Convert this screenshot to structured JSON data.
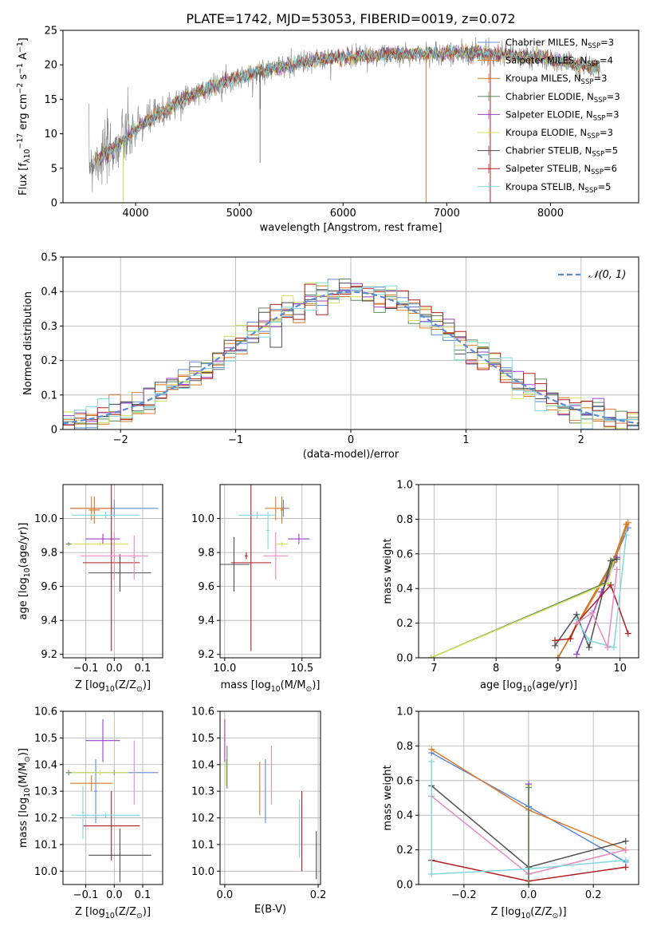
{
  "figure": {
    "title": "PLATE=1742, MJD=53053, FIBERID=0019, z=0.072"
  },
  "colors": {
    "Chabrier MILES": "#5b8bd4",
    "Salpeter MILES": "#e07a2b",
    "Kroupa MILES": "#c9761d",
    "Chabrier ELODIE": "#5c8a5c",
    "Salpeter ELODIE": "#9a3fc9",
    "Kroupa ELODIE": "#d4e05a",
    "Chabrier STELIB": "#4d4d4d",
    "Salpeter STELIB": "#b01e1e",
    "Kroupa STELIB": "#7fd8df",
    "data": "#808080",
    "pink": "#e68ac3",
    "normal": "#5b8bd4"
  },
  "chart_data": [
    {
      "id": "spectrum",
      "type": "line",
      "xlabel": "wavelength [Angstrom, rest frame]",
      "ylabel": "Flux [f",
      "ylabel_parts": [
        "Flux [f",
        "λ",
        "10",
        "−17",
        " erg cm",
        "−2",
        " s",
        "−1",
        " A",
        "−1",
        "]"
      ],
      "xlim": [
        3300,
        8850
      ],
      "ylim": [
        0,
        25
      ],
      "xticks": [
        4000,
        5000,
        6000,
        7000,
        8000
      ],
      "yticks": [
        0,
        5,
        10,
        15,
        20,
        25
      ],
      "continuum_x": [
        3550,
        3650,
        3750,
        3850,
        3950,
        4050,
        4150,
        4300,
        4500,
        4700,
        4900,
        5100,
        5300,
        5500,
        5700,
        5900,
        6100,
        6300,
        6500,
        6700,
        6900,
        7100,
        7300,
        7500,
        7700,
        7900,
        8100,
        8300,
        8500
      ],
      "continuum_y": [
        5.8,
        6.5,
        7.5,
        8.5,
        9.8,
        11.2,
        12.2,
        13.5,
        15.3,
        16.6,
        17.8,
        18.6,
        19.4,
        19.9,
        20.6,
        21.0,
        21.3,
        21.4,
        21.5,
        21.6,
        21.6,
        21.7,
        21.7,
        21.5,
        21.3,
        21.0,
        20.4,
        20.0,
        19.4
      ],
      "legend": [
        {
          "label": "Chabrier MILES",
          "n": "3"
        },
        {
          "label": "Salpeter MILES",
          "n": "4"
        },
        {
          "label": "Kroupa MILES",
          "n": "3"
        },
        {
          "label": "Chabrier ELODIE",
          "n": "3"
        },
        {
          "label": "Salpeter ELODIE",
          "n": "3"
        },
        {
          "label": "Kroupa ELODIE",
          "n": "3"
        },
        {
          "label": "Chabrier STELIB",
          "n": "5"
        },
        {
          "label": "Salpeter STELIB",
          "n": "6"
        },
        {
          "label": "Kroupa STELIB",
          "n": "5"
        }
      ],
      "legend_prefix": "N",
      "legend_sub": "SSP",
      "legend_placement": "top-right",
      "grid": false
    },
    {
      "id": "residuals",
      "type": "histogram",
      "xlabel": "(data-model)/error",
      "ylabel": "Normed distribution",
      "xlim": [
        -2.5,
        2.5
      ],
      "ylim": [
        0,
        0.5
      ],
      "xticks": [
        -2,
        -1,
        0,
        1,
        2
      ],
      "yticks": [
        0.0,
        0.1,
        0.2,
        0.3,
        0.4,
        0.5
      ],
      "bin_width": 0.1,
      "legend": [
        "𝒩(0, 1)"
      ],
      "legend_placement": "top-right",
      "grid": true
    },
    {
      "id": "age-vs-Z",
      "type": "scatter",
      "xlabel": "Z [log",
      "xlabel_parts": [
        "Z [log",
        "10",
        "(Z/Z",
        "⊙",
        ")]"
      ],
      "ylabel": "age  [log",
      "ylabel_parts": [
        "age  [log",
        "10",
        "(age/yr)]"
      ],
      "xlim": [
        -0.18,
        0.17
      ],
      "ylim": [
        9.18,
        10.2
      ],
      "xticks": [
        -0.1,
        0.0,
        0.1
      ],
      "xticklabels": [
        "−0.1",
        "0.0",
        "0.1"
      ],
      "yticks": [
        9.2,
        9.4,
        9.6,
        9.8,
        10.0
      ],
      "yticklabels": [
        "9.2",
        "9.4",
        "9.6",
        "9.8",
        "10.0"
      ],
      "grid": true,
      "points": [
        {
          "series": "Chabrier MILES",
          "x": 0.0,
          "xerr": 0.155,
          "y": 10.06,
          "yerr": 0.05
        },
        {
          "series": "Salpeter MILES",
          "x": -0.08,
          "xerr": 0.075,
          "y": 10.06,
          "yerr": 0.07
        },
        {
          "series": "Kroupa MILES",
          "x": -0.07,
          "xerr": 0.02,
          "y": 10.05,
          "yerr": 0.08
        },
        {
          "series": "Chabrier ELODIE",
          "x": -0.16,
          "xerr": 0.01,
          "y": 9.85,
          "yerr": 0.01
        },
        {
          "series": "Salpeter ELODIE",
          "x": -0.04,
          "xerr": 0.06,
          "y": 9.88,
          "yerr": 0.03
        },
        {
          "series": "Kroupa ELODIE",
          "x": -0.05,
          "xerr": 0.1,
          "y": 9.85,
          "yerr": 0.01
        },
        {
          "series": "Chabrier STELIB",
          "x": 0.02,
          "xerr": 0.11,
          "y": 9.68,
          "yerr": 0.11
        },
        {
          "series": "Salpeter STELIB",
          "x": -0.01,
          "xerr": 0.1,
          "y": 9.74,
          "yerr": 0.52
        },
        {
          "series": "Kroupa STELIB",
          "x": -0.03,
          "xerr": 0.12,
          "y": 10.02,
          "yerr": 0.02
        },
        {
          "series": "pink",
          "x": 0.0,
          "xerr": 0.12,
          "y": 9.78,
          "yerr": 0.14
        },
        {
          "series": "pink",
          "x": 0.07,
          "xerr": 0.005,
          "y": 9.77,
          "yerr": 0.13
        }
      ]
    },
    {
      "id": "age-vs-mass",
      "type": "scatter",
      "xlabel": "mass [log",
      "xlabel_parts": [
        "mass [log",
        "10",
        "(M/M",
        "⊙",
        ")]"
      ],
      "ylabel": "",
      "xlim": [
        9.97,
        10.62
      ],
      "ylim": [
        9.18,
        10.2
      ],
      "xticks": [
        10.0,
        10.5
      ],
      "xticklabels": [
        "10.0",
        "10.5"
      ],
      "yticks": [
        9.2,
        9.4,
        9.6,
        9.8,
        10.0
      ],
      "yticklabels": [
        "9.2",
        "9.4",
        "9.6",
        "9.8",
        "10.0"
      ],
      "grid": true,
      "points": [
        {
          "series": "Chabrier MILES",
          "x": 10.38,
          "xerr": 0.04,
          "y": 10.06,
          "yerr": 0.05
        },
        {
          "series": "Salpeter MILES",
          "x": 10.33,
          "xerr": 0.07,
          "y": 10.06,
          "yerr": 0.07
        },
        {
          "series": "Kroupa MILES",
          "x": 10.37,
          "xerr": 0.01,
          "y": 10.05,
          "yerr": 0.08
        },
        {
          "series": "Chabrier ELODIE",
          "x": 10.37,
          "xerr": 0.01,
          "y": 9.85,
          "yerr": 0.01
        },
        {
          "series": "Salpeter ELODIE",
          "x": 10.48,
          "xerr": 0.07,
          "y": 9.88,
          "yerr": 0.03
        },
        {
          "series": "Kroupa ELODIE",
          "x": 10.37,
          "xerr": 0.04,
          "y": 9.85,
          "yerr": 0.01
        },
        {
          "series": "Chabrier STELIB",
          "x": 10.06,
          "xerr": 0.1,
          "y": 9.73,
          "yerr": 0.16
        },
        {
          "series": "Salpeter STELIB",
          "x": 10.17,
          "xerr": 0.13,
          "y": 9.74,
          "yerr": 0.52
        },
        {
          "series": "Kroupa STELIB",
          "x": 10.21,
          "xerr": 0.12,
          "y": 10.02,
          "yerr": 0.02
        },
        {
          "series": "Kroupa STELIB",
          "x": 10.28,
          "xerr": 0.01,
          "y": 9.93,
          "yerr": 0.11
        },
        {
          "series": "pink",
          "x": 10.33,
          "xerr": 0.08,
          "y": 9.78,
          "yerr": 0.14
        },
        {
          "series": "Salpeter STELIB",
          "x": 10.14,
          "xerr": 0.01,
          "y": 9.78,
          "yerr": 0.02
        }
      ]
    },
    {
      "id": "weight-vs-age",
      "type": "line",
      "xlabel": "age  [log",
      "xlabel_parts": [
        "age  [log",
        "10",
        "(age/yr)]"
      ],
      "ylabel": "mass weight",
      "xlim": [
        6.75,
        10.3
      ],
      "ylim": [
        0,
        1.0
      ],
      "xticks": [
        7,
        8,
        9,
        10
      ],
      "xticklabels": [
        "7",
        "8",
        "9",
        "10"
      ],
      "yticks": [
        0.0,
        0.2,
        0.4,
        0.6,
        0.8,
        1.0
      ],
      "yticklabels": [
        "0.0",
        "0.2",
        "0.4",
        "0.6",
        "0.8",
        "1.0"
      ],
      "grid": true,
      "series": [
        {
          "name": "Chabrier MILES",
          "x": [
            9.0,
            9.9,
            10.13
          ],
          "y": [
            0.0,
            0.56,
            0.75
          ]
        },
        {
          "name": "Salpeter MILES",
          "x": [
            9.0,
            9.9,
            10.13
          ],
          "y": [
            0.0,
            0.55,
            0.78
          ]
        },
        {
          "name": "Kroupa MILES",
          "x": [
            9.0,
            9.9,
            10.1
          ],
          "y": [
            0.0,
            0.57,
            0.77
          ]
        },
        {
          "name": "Chabrier ELODIE",
          "x": [
            6.95,
            9.75,
            9.9
          ],
          "y": [
            0.0,
            0.43,
            0.57
          ]
        },
        {
          "name": "Salpeter ELODIE",
          "x": [
            9.3,
            9.7,
            9.95
          ],
          "y": [
            0.02,
            0.38,
            0.58
          ]
        },
        {
          "name": "Kroupa ELODIE",
          "x": [
            6.95,
            9.8,
            9.9
          ],
          "y": [
            0.0,
            0.43,
            0.56
          ]
        },
        {
          "name": "Chabrier STELIB",
          "x": [
            8.95,
            9.3,
            9.5,
            9.85,
            9.95
          ],
          "y": [
            0.07,
            0.25,
            0.06,
            0.56,
            0.57
          ]
        },
        {
          "name": "Salpeter STELIB",
          "x": [
            8.95,
            9.2,
            9.3,
            9.85,
            10.13
          ],
          "y": [
            0.1,
            0.11,
            0.2,
            0.42,
            0.14
          ]
        },
        {
          "name": "Kroupa STELIB",
          "x": [
            9.3,
            9.5,
            9.9,
            10.1
          ],
          "y": [
            0.22,
            0.1,
            0.06,
            0.71
          ]
        },
        {
          "name": "pink",
          "x": [
            9.3,
            9.55,
            9.8,
            9.95
          ],
          "y": [
            0.2,
            0.26,
            0.06,
            0.51
          ]
        }
      ]
    },
    {
      "id": "mass-vs-Z",
      "type": "scatter",
      "xlabel": "Z [log",
      "xlabel_parts": [
        "Z [log",
        "10",
        "(Z/Z",
        "⊙",
        ")]"
      ],
      "ylabel": "mass [log",
      "ylabel_parts": [
        "mass [log",
        "10",
        "(M/M",
        "⊙",
        ")]"
      ],
      "xlim": [
        -0.18,
        0.17
      ],
      "ylim": [
        9.95,
        10.6
      ],
      "xticks": [
        -0.1,
        0.0,
        0.1
      ],
      "xticklabels": [
        "−0.1",
        "0.0",
        "0.1"
      ],
      "yticks": [
        10.0,
        10.1,
        10.2,
        10.3,
        10.4,
        10.5,
        10.6
      ],
      "yticklabels": [
        "10.0",
        "10.1",
        "10.2",
        "10.3",
        "10.4",
        "10.5",
        "10.6"
      ],
      "grid": true,
      "points": [
        {
          "series": "Chabrier MILES",
          "x": 0.0,
          "xerr": 0.155,
          "y": 10.37,
          "yerr": 0.01
        },
        {
          "series": "Salpeter MILES",
          "x": -0.08,
          "xerr": 0.075,
          "y": 10.33,
          "yerr": 0.03
        },
        {
          "series": "Chabrier MILES",
          "x": -0.065,
          "xerr": 0.005,
          "y": 10.3,
          "yerr": 0.12
        },
        {
          "series": "Chabrier ELODIE",
          "x": -0.16,
          "xerr": 0.01,
          "y": 10.37,
          "yerr": 0.01
        },
        {
          "series": "Salpeter ELODIE",
          "x": -0.04,
          "xerr": 0.06,
          "y": 10.49,
          "yerr": 0.08
        },
        {
          "series": "Kroupa ELODIE",
          "x": -0.05,
          "xerr": 0.1,
          "y": 10.37,
          "yerr": 0.01
        },
        {
          "series": "Chabrier STELIB",
          "x": 0.02,
          "xerr": 0.11,
          "y": 10.06,
          "yerr": 0.1
        },
        {
          "series": "Salpeter STELIB",
          "x": -0.01,
          "xerr": 0.1,
          "y": 10.17,
          "yerr": 0.13
        },
        {
          "series": "Kroupa STELIB",
          "x": -0.03,
          "xerr": 0.12,
          "y": 10.21,
          "yerr": 0.01
        },
        {
          "series": "Kroupa STELIB",
          "x": -0.11,
          "xerr": 0.005,
          "y": 10.22,
          "yerr": 0.1
        },
        {
          "series": "pink",
          "x": 0.07,
          "xerr": 0.005,
          "y": 10.37,
          "yerr": 0.12
        }
      ]
    },
    {
      "id": "mass-vs-ebv",
      "type": "scatter",
      "xlabel": "E(B-V)",
      "ylabel": "",
      "xlim": [
        -0.01,
        0.205
      ],
      "ylim": [
        9.95,
        10.6
      ],
      "xticks": [
        0.0,
        0.2
      ],
      "xticklabels": [
        "0.0",
        "0.2"
      ],
      "yticks": [
        10.0,
        10.1,
        10.2,
        10.3,
        10.4,
        10.5,
        10.6
      ],
      "yticklabels": [
        "10.0",
        "10.1",
        "10.2",
        "10.3",
        "10.4",
        "10.5",
        "10.6"
      ],
      "grid": true,
      "points": [
        {
          "series": "Salpeter ELODIE",
          "x": 0.0,
          "xerr": 0,
          "y": 10.49,
          "yerr": 0.08
        },
        {
          "series": "Kroupa ELODIE",
          "x": 0.003,
          "xerr": 0,
          "y": 10.37,
          "yerr": 0.05
        },
        {
          "series": "Chabrier ELODIE",
          "x": 0.005,
          "xerr": 0,
          "y": 10.39,
          "yerr": 0.08
        },
        {
          "series": "Salpeter MILES",
          "x": 0.075,
          "xerr": 0,
          "y": 10.31,
          "yerr": 0.1
        },
        {
          "series": "Chabrier MILES",
          "x": 0.087,
          "xerr": 0,
          "y": 10.3,
          "yerr": 0.12
        },
        {
          "series": "pink",
          "x": 0.1,
          "xerr": 0,
          "y": 10.36,
          "yerr": 0.11
        },
        {
          "series": "Kroupa STELIB",
          "x": 0.16,
          "xerr": 0,
          "y": 10.16,
          "yerr": 0.11
        },
        {
          "series": "Salpeter STELIB",
          "x": 0.165,
          "xerr": 0,
          "y": 10.15,
          "yerr": 0.15
        },
        {
          "series": "Chabrier STELIB",
          "x": 0.196,
          "xerr": 0,
          "y": 10.06,
          "yerr": 0.09
        }
      ]
    },
    {
      "id": "weight-vs-Z",
      "type": "line",
      "xlabel": "Z [log",
      "xlabel_parts": [
        "Z [log",
        "10",
        "(Z/Z",
        "⊙",
        ")]"
      ],
      "ylabel": "mass weight",
      "xlim": [
        -0.34,
        0.34
      ],
      "ylim": [
        0,
        1.0
      ],
      "xticks": [
        -0.2,
        0.0,
        0.2
      ],
      "xticklabels": [
        "−0.2",
        "0.0",
        "0.2"
      ],
      "yticks": [
        0.0,
        0.2,
        0.4,
        0.6,
        0.8,
        1.0
      ],
      "yticklabels": [
        "0.0",
        "0.2",
        "0.4",
        "0.6",
        "0.8",
        "1.0"
      ],
      "grid": true,
      "series": [
        {
          "name": "Chabrier MILES",
          "x": [
            -0.3,
            0.0,
            0.3
          ],
          "y": [
            0.76,
            0.45,
            0.13
          ]
        },
        {
          "name": "Salpeter MILES",
          "x": [
            -0.3,
            0.0,
            0.3
          ],
          "y": [
            0.78,
            0.43,
            0.2
          ]
        },
        {
          "name": "Chabrier STELIB",
          "x": [
            -0.3,
            0.0,
            0.3
          ],
          "y": [
            0.57,
            0.1,
            0.25
          ]
        },
        {
          "name": "pink",
          "x": [
            -0.3,
            0.0,
            0.3
          ],
          "y": [
            0.51,
            0.06,
            0.2
          ]
        },
        {
          "name": "Salpeter STELIB",
          "x": [
            -0.3,
            0.0,
            0.3
          ],
          "y": [
            0.14,
            0.02,
            0.1
          ]
        },
        {
          "name": "Kroupa STELIB",
          "x": [
            -0.3,
            -0.3,
            0.0,
            0.3
          ],
          "y": [
            0.71,
            0.06,
            0.09,
            0.14
          ]
        },
        {
          "name": "Kroupa ELODIE",
          "x": [
            0.0,
            0.0
          ],
          "y": [
            0.0,
            0.57
          ]
        },
        {
          "name": "Salpeter ELODIE",
          "x": [
            0.0,
            0.0
          ],
          "y": [
            0.0,
            0.58
          ]
        },
        {
          "name": "Chabrier ELODIE",
          "x": [
            0.0,
            0.0
          ],
          "y": [
            0.0,
            0.56
          ]
        }
      ]
    }
  ]
}
